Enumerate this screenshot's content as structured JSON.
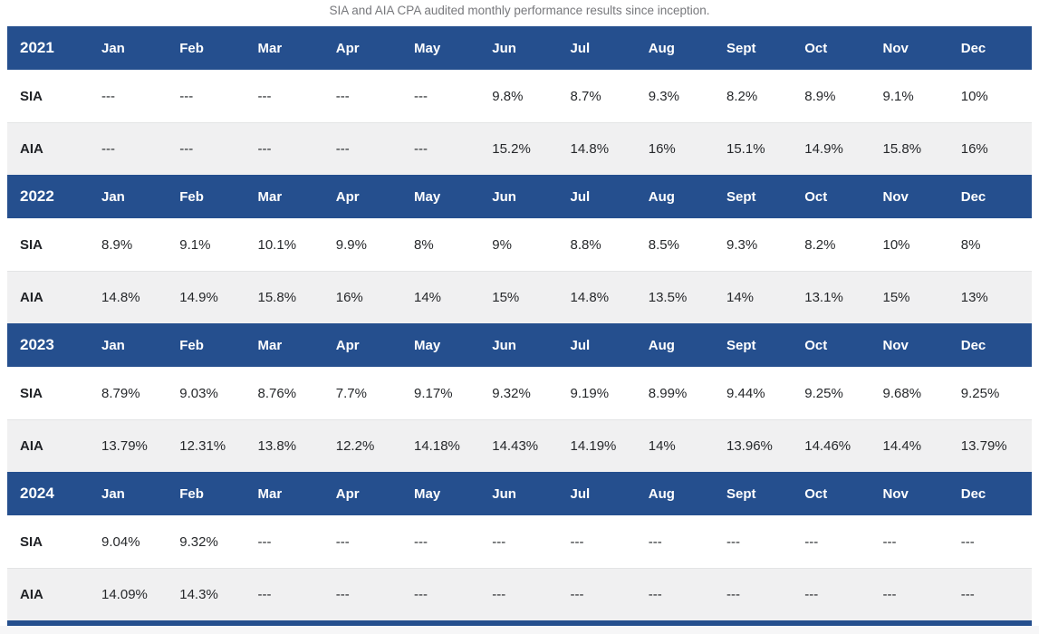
{
  "subtitle": "SIA and AIA CPA audited monthly performance results since inception.",
  "colors": {
    "header_bg": "#254f8e",
    "header_text": "#ffffff",
    "alt_row_bg": "#f0f0f1",
    "body_text": "#26282b",
    "caption_text": "#77787c"
  },
  "chart_data": {
    "type": "table",
    "title": "SIA and AIA CPA audited monthly performance results since inception.",
    "months": [
      "Jan",
      "Feb",
      "Mar",
      "Apr",
      "May",
      "Jun",
      "Jul",
      "Aug",
      "Sept",
      "Oct",
      "Nov",
      "Dec"
    ],
    "row_labels": {
      "sia": "SIA",
      "aia": "AIA"
    },
    "sections": [
      {
        "year": "2021",
        "sia": [
          "---",
          "---",
          "---",
          "---",
          "---",
          "9.8%",
          "8.7%",
          "9.3%",
          "8.2%",
          "8.9%",
          "9.1%",
          "10%"
        ],
        "aia": [
          "---",
          "---",
          "---",
          "---",
          "---",
          "15.2%",
          "14.8%",
          "16%",
          "15.1%",
          "14.9%",
          "15.8%",
          "16%"
        ]
      },
      {
        "year": "2022",
        "sia": [
          "8.9%",
          "9.1%",
          "10.1%",
          "9.9%",
          "8%",
          "9%",
          "8.8%",
          "8.5%",
          "9.3%",
          "8.2%",
          "10%",
          "8%"
        ],
        "aia": [
          "14.8%",
          "14.9%",
          "15.8%",
          "16%",
          "14%",
          "15%",
          "14.8%",
          "13.5%",
          "14%",
          "13.1%",
          "15%",
          "13%"
        ]
      },
      {
        "year": "2023",
        "sia": [
          "8.79%",
          "9.03%",
          "8.76%",
          "7.7%",
          "9.17%",
          "9.32%",
          "9.19%",
          "8.99%",
          "9.44%",
          "9.25%",
          "9.68%",
          "9.25%"
        ],
        "aia": [
          "13.79%",
          "12.31%",
          "13.8%",
          "12.2%",
          "14.18%",
          "14.43%",
          "14.19%",
          "14%",
          "13.96%",
          "14.46%",
          "14.4%",
          "13.79%"
        ]
      },
      {
        "year": "2024",
        "sia": [
          "9.04%",
          "9.32%",
          "---",
          "---",
          "---",
          "---",
          "---",
          "---",
          "---",
          "---",
          "---",
          "---"
        ],
        "aia": [
          "14.09%",
          "14.3%",
          "---",
          "---",
          "---",
          "---",
          "---",
          "---",
          "---",
          "---",
          "---",
          "---"
        ]
      }
    ]
  }
}
